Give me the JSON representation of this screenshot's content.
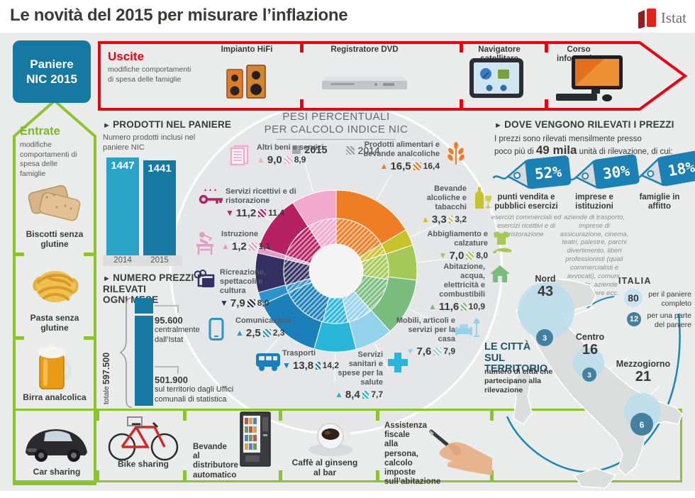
{
  "ui": {
    "bullet": "►"
  },
  "colors": {
    "accent_red": "#e30613",
    "accent_green": "#8cc42e",
    "accent_blue": "#1579a1",
    "bar_2014": "#2ba3c6",
    "bar_2015": "#1579a1",
    "tag_blue": "#1b81b4",
    "map_light_circle": "#bcdded",
    "map_dark_circle": "#44809f",
    "arc_blue": "#1787b8"
  },
  "header": {
    "title": "Le novità del 2015 per misurare l’inflazione",
    "logo_text": "Istat"
  },
  "basket": {
    "label": "Paniere NIC 2015"
  },
  "uscite": {
    "title": "Uscite",
    "desc": "modifiche comportamenti di spesa delle famiglie",
    "items": [
      "Impianto HiFi",
      "Registratore DVD",
      "Navigatore satellitare",
      "Corso informatica"
    ]
  },
  "entrate": {
    "title": "Entrate",
    "desc": "modifiche comportamenti di spesa delle famiglie",
    "items": [
      "Biscotti senza glutine",
      "Pasta senza glutine",
      "Birra analcolica"
    ]
  },
  "prodotti": {
    "heading": "PRODOTTI NEL PANIERE",
    "subtitle": "Numero prodotti inclusi nel paniere NIC"
  },
  "prezzi": {
    "heading": "NUMERO PREZZI\nRILEVATI\nOGNI MESE"
  },
  "dove": {
    "heading": "DOVE VENGONO RILEVATI I PREZZI",
    "intro1": "I prezzi sono rilevati mensilmente presso",
    "intro2_pre": "poco più di ",
    "intro2_big": "49 mila",
    "intro2_post": " unità di rilevazione, di cui:"
  },
  "bottom": {
    "items": [
      "Car sharing",
      "Bike sharing",
      "Bevande\nal\ndistributore\nautomatico",
      "Caffè al ginseng\nal bar",
      "Assistenza\nfiscale\nalla\npersona,\ncalcolo\nimposte\nsull’abitazione"
    ]
  },
  "chart_data": [
    {
      "id": "pesi_indice_nic",
      "type": "donut",
      "title": "PESI PERCENTUALI\nPER CALCOLO INDICE NIC",
      "legend": [
        "2015",
        "2014"
      ],
      "categories": [
        {
          "name": "Prodotti alimentari e bevande analcoliche",
          "v2015": 16.5,
          "v2014": 16.4,
          "d2015": "16,5",
          "d2014": "16,4",
          "trend": "up",
          "color": "#ee7d23",
          "icon": "wheat-icon"
        },
        {
          "name": "Bevande alcoliche e tabacchi",
          "v2015": 3.3,
          "v2014": 3.2,
          "d2015": "3,3",
          "d2014": "3,2",
          "trend": "up",
          "color": "#c9c32b",
          "icon": "bottle-glass-icon"
        },
        {
          "name": "Abbigliamento e calzature",
          "v2015": 7.0,
          "v2014": 8.0,
          "d2015": "7,0",
          "d2014": "8,0",
          "trend": "down",
          "color": "#a5c956",
          "icon": "shirt-heel-icon"
        },
        {
          "name": "Abitazione, acqua, elettricità e combustibili",
          "v2015": 11.6,
          "v2014": 10.9,
          "d2015": "11,6",
          "d2014": "10,9",
          "trend": "up",
          "color": "#79bd7e",
          "icon": "house-icon"
        },
        {
          "name": "Mobili, articoli e servizi per la casa",
          "v2015": 7.6,
          "v2014": 7.9,
          "d2015": "7,6",
          "d2014": "7,9",
          "trend": "down",
          "color": "#94d2ec",
          "icon": "sofa-lamp-icon"
        },
        {
          "name": "Servizi sanitari e spese per la salute",
          "v2015": 8.4,
          "v2014": 7.7,
          "d2015": "8,4",
          "d2014": "7,7",
          "trend": "up",
          "color": "#29b6d8",
          "icon": "medical-cross-icon"
        },
        {
          "name": "Trasporti",
          "v2015": 13.8,
          "v2014": 14.2,
          "d2015": "13,8",
          "d2014": "14,2",
          "trend": "down",
          "color": "#1b80ba",
          "icon": "bus-icon"
        },
        {
          "name": "Comunicazioni",
          "v2015": 2.5,
          "v2014": 2.3,
          "d2015": "2,5",
          "d2014": "2,3",
          "trend": "up",
          "color": "#2c93cc",
          "icon": "smartphone-icon"
        },
        {
          "name": "Ricreazione, spettacoli e cultura",
          "v2015": 7.9,
          "v2014": 8.0,
          "d2015": "7,9",
          "d2014": "8,0",
          "trend": "down",
          "color": "#332f63",
          "icon": "culture-icon"
        },
        {
          "name": "Istruzione",
          "v2015": 1.2,
          "v2014": 1.1,
          "d2015": "1,2",
          "d2014": "1,1",
          "trend": "up",
          "color": "#e09ec6",
          "icon": "education-icon"
        },
        {
          "name": "Servizi ricettivi e di ristorazione",
          "v2015": 11.2,
          "v2014": 11.4,
          "d2015": "11,2",
          "d2014": "11,4",
          "trend": "down",
          "color": "#b72162",
          "icon": "key-icon"
        },
        {
          "name": "Altri beni e servizi",
          "v2015": 9.0,
          "v2014": 8.9,
          "d2015": "9,0",
          "d2014": "8,9",
          "trend": "up",
          "color": "#f3a8ce",
          "icon": "documents-icon"
        }
      ]
    },
    {
      "id": "prodotti_paniere",
      "type": "bar",
      "categories": [
        "2014",
        "2015"
      ],
      "values": [
        1447,
        1441
      ],
      "labels": [
        "1447",
        "1441"
      ]
    },
    {
      "id": "prezzi_rilevati_mese",
      "type": "stacked_bar",
      "total_label": "totale",
      "total": "597.500",
      "segments": [
        {
          "value": 95600,
          "label": "95.600",
          "desc": "centralmente dall’Istat"
        },
        {
          "value": 501900,
          "label": "501.900",
          "desc": "sul territorio dagli Uffici comunali di statistica"
        }
      ]
    },
    {
      "id": "unita_di_rilevazione",
      "type": "pie",
      "slices": [
        {
          "value": 52,
          "dpct": "52%",
          "label": "punti vendita e pubblici esercizi",
          "desc": "esercizi commerciali ed esercizi ricettivi e di ristorazione"
        },
        {
          "value": 30,
          "dpct": "30%",
          "label": "imprese e istituzioni",
          "desc": "aziende di trasporto, imprese di assicurazione, cinema, teatri, palestre, parchi divertimento, liberi professionisti (quali commercialisti e avvocati), comuni, scuole, aziende ospedaliere ecc."
        },
        {
          "value": 18,
          "dpct": "18%",
          "label": "famiglie in affitto",
          "desc": ""
        }
      ]
    },
    {
      "id": "citta_territorio",
      "type": "map",
      "title": "LE CITTÀ\nSUL TERRITORIO",
      "subtitle": "numero di città che partecipano alla rilevazione",
      "regions": [
        {
          "name": "Nord",
          "total": 43,
          "dtotal": "43",
          "partial": 3,
          "dpartial": "3"
        },
        {
          "name": "Centro",
          "total": 16,
          "dtotal": "16",
          "partial": 3,
          "dpartial": "3"
        },
        {
          "name": "Mezzogiorno",
          "total": 21,
          "dtotal": "21",
          "partial": 6,
          "dpartial": "6"
        }
      ],
      "italia": {
        "label": "ITALIA",
        "complete": 80,
        "dcomplete": "80",
        "complete_caption": "per il paniere completo",
        "partial": 12,
        "dpartial": "12",
        "partial_caption": "per una parte del paniere"
      }
    }
  ]
}
